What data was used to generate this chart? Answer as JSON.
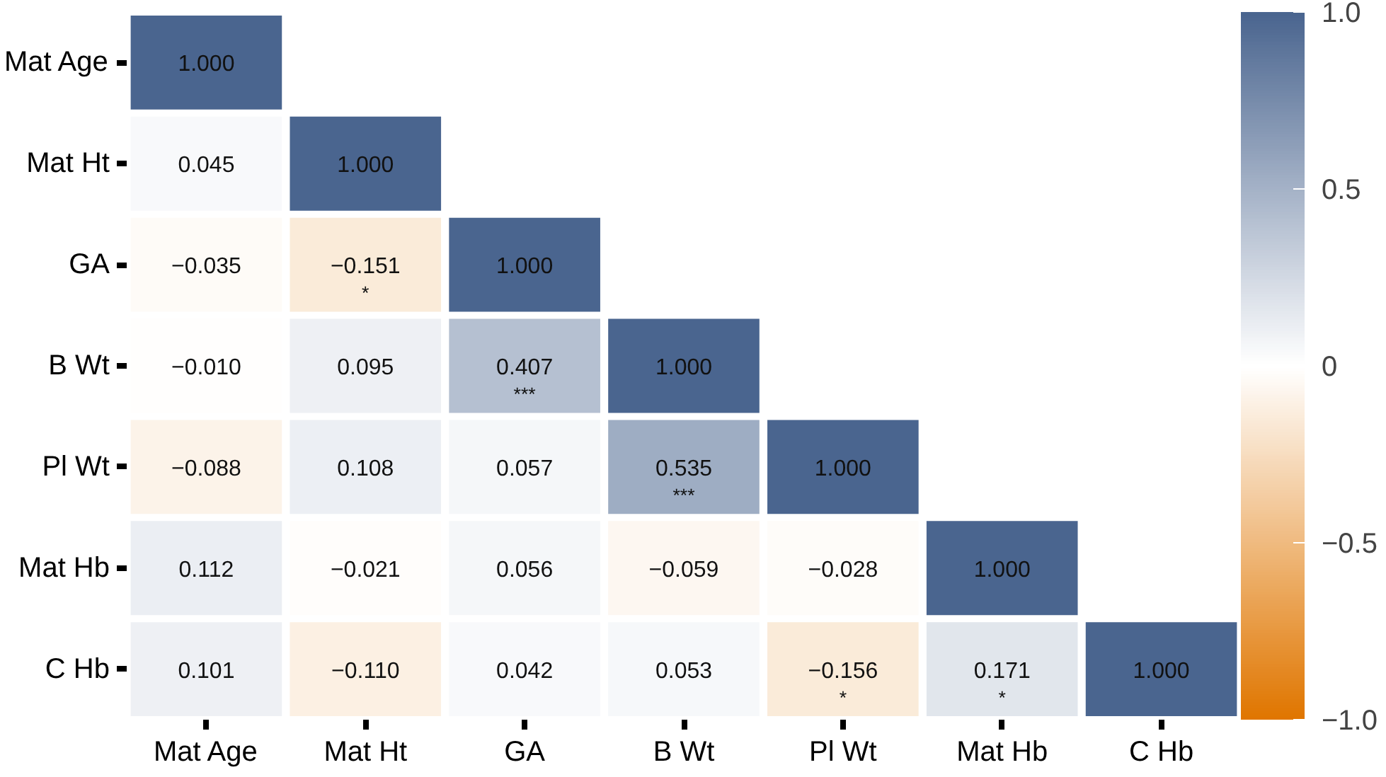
{
  "chart_data": {
    "type": "heatmap",
    "categories": [
      "Mat Age",
      "Mat Ht",
      "GA",
      "B Wt",
      "Pl Wt",
      "Mat Hb",
      "C Hb"
    ],
    "y_categories": [
      "Mat Age",
      "Mat Ht",
      "GA",
      "B Wt",
      "Pl Wt",
      "Mat Hb",
      "C Hb"
    ],
    "cells": [
      [
        1.0,
        null,
        null,
        null,
        null,
        null,
        null
      ],
      [
        0.045,
        1.0,
        null,
        null,
        null,
        null,
        null
      ],
      [
        -0.035,
        -0.151,
        1.0,
        null,
        null,
        null,
        null
      ],
      [
        -0.01,
        0.095,
        0.407,
        1.0,
        null,
        null,
        null
      ],
      [
        -0.088,
        0.108,
        0.057,
        0.535,
        1.0,
        null,
        null
      ],
      [
        0.112,
        -0.021,
        0.056,
        -0.059,
        -0.028,
        1.0,
        null
      ],
      [
        0.101,
        -0.11,
        0.042,
        0.053,
        -0.156,
        0.171,
        1.0
      ]
    ],
    "cell_labels": [
      [
        "1.000",
        null,
        null,
        null,
        null,
        null,
        null
      ],
      [
        "0.045",
        "1.000",
        null,
        null,
        null,
        null,
        null
      ],
      [
        "−0.035",
        "−0.151\n*",
        "1.000",
        null,
        null,
        null,
        null
      ],
      [
        "−0.010",
        "0.095",
        "0.407\n***",
        "1.000",
        null,
        null,
        null
      ],
      [
        "−0.088",
        "0.108",
        "0.057",
        "0.535\n***",
        "1.000",
        null,
        null
      ],
      [
        "0.112",
        "−0.021",
        "0.056",
        "−0.059",
        "−0.028",
        "1.000",
        null
      ],
      [
        "0.101",
        "−0.110",
        "0.042",
        "0.053",
        "−0.156\n*",
        "0.171\n*",
        "1.000"
      ]
    ],
    "clim": [
      -1.0,
      1.0
    ],
    "cticks": [
      {
        "value": -1.0,
        "label": "−1.0"
      },
      {
        "value": -0.5,
        "label": "−0.5"
      },
      0,
      {
        "value": 0.5,
        "label": "0.5"
      },
      {
        "value": 1.0,
        "label": "1.0"
      }
    ]
  }
}
